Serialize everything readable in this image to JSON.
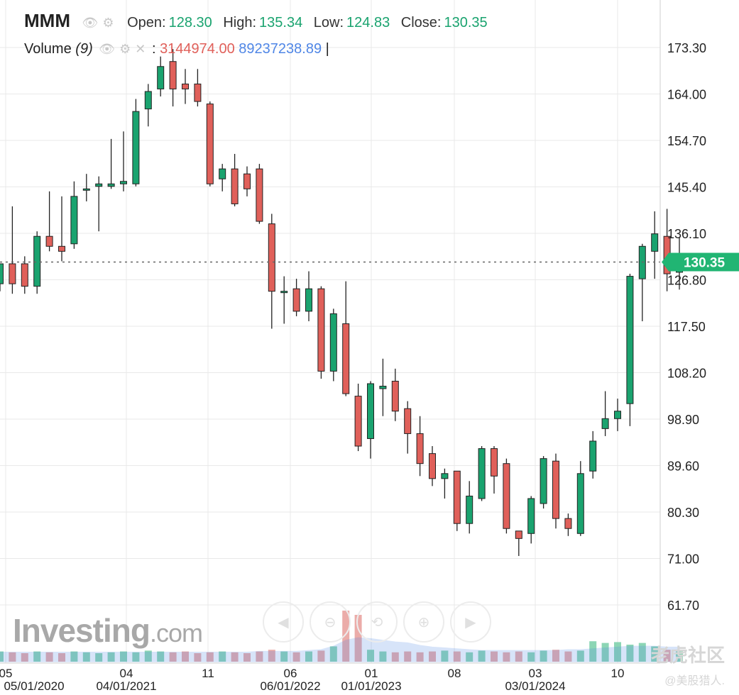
{
  "header": {
    "symbol": "MMM",
    "open_label": "Open:",
    "open": "128.30",
    "high_label": "High:",
    "high": "135.34",
    "low_label": "Low:",
    "low": "124.83",
    "close_label": "Close:",
    "close": "130.35"
  },
  "volume_legend": {
    "label": "Volume",
    "period": "(9)",
    "value1": "3144974.00",
    "value2": "89237238.89"
  },
  "watermark": {
    "brand": "Investing",
    "suffix": ".com"
  },
  "overlay": {
    "line1": "老虎社区",
    "line2": "@美股猎人."
  },
  "colors": {
    "up": "#1aa36f",
    "down": "#e0605a",
    "volume_ma": "#4f86e6",
    "price_tag": "#21b573"
  },
  "chart_data": {
    "type": "candlestick",
    "price_axis": {
      "ticks": [
        "173.30",
        "164.00",
        "154.70",
        "145.40",
        "136.10",
        "126.80",
        "117.50",
        "108.20",
        "98.90",
        "89.60",
        "80.30",
        "71.00",
        "61.70"
      ]
    },
    "time_axis_top": [
      "05",
      "04",
      "11",
      "06",
      "01",
      "08",
      "03",
      "10"
    ],
    "time_axis_bottom": [
      "05/01/2020",
      "04/01/2021",
      "06/01/2022",
      "01/01/2023",
      "03/01/2024"
    ],
    "last_price": "130.35",
    "candles": [
      {
        "o": 126.0,
        "h": 130.0,
        "l": 124.5,
        "c": 130.0
      },
      {
        "o": 130.0,
        "h": 141.5,
        "l": 124.0,
        "c": 126.0
      },
      {
        "o": 130.0,
        "h": 131.5,
        "l": 124.0,
        "c": 125.5
      },
      {
        "o": 125.5,
        "h": 136.5,
        "l": 124.0,
        "c": 135.5
      },
      {
        "o": 135.5,
        "h": 144.5,
        "l": 132.5,
        "c": 133.5
      },
      {
        "o": 133.5,
        "h": 143.5,
        "l": 130.5,
        "c": 132.5
      },
      {
        "o": 134.0,
        "h": 146.5,
        "l": 133.0,
        "c": 143.5
      },
      {
        "o": 145.0,
        "h": 148.0,
        "l": 142.5,
        "c": 145.0
      },
      {
        "o": 145.5,
        "h": 147.5,
        "l": 136.5,
        "c": 146.0
      },
      {
        "o": 145.5,
        "h": 155.0,
        "l": 145.0,
        "c": 146.0
      },
      {
        "o": 146.0,
        "h": 156.5,
        "l": 144.5,
        "c": 146.5
      },
      {
        "o": 146.0,
        "h": 163.0,
        "l": 145.5,
        "c": 160.5
      },
      {
        "o": 161.0,
        "h": 166.0,
        "l": 157.5,
        "c": 164.5
      },
      {
        "o": 165.0,
        "h": 171.5,
        "l": 163.5,
        "c": 169.5
      },
      {
        "o": 170.5,
        "h": 173.0,
        "l": 161.5,
        "c": 165.0
      },
      {
        "o": 166.0,
        "h": 169.0,
        "l": 162.0,
        "c": 165.0
      },
      {
        "o": 166.0,
        "h": 169.0,
        "l": 161.5,
        "c": 162.5
      },
      {
        "o": 162.0,
        "h": 162.5,
        "l": 145.5,
        "c": 146.0
      },
      {
        "o": 147.0,
        "h": 150.0,
        "l": 144.5,
        "c": 149.0
      },
      {
        "o": 149.0,
        "h": 152.0,
        "l": 141.5,
        "c": 142.0
      },
      {
        "o": 148.0,
        "h": 149.5,
        "l": 143.5,
        "c": 145.0
      },
      {
        "o": 149.0,
        "h": 150.0,
        "l": 138.0,
        "c": 138.5
      },
      {
        "o": 138.0,
        "h": 140.0,
        "l": 117.0,
        "c": 124.5
      },
      {
        "o": 124.5,
        "h": 127.5,
        "l": 118.0,
        "c": 124.5
      },
      {
        "o": 125.0,
        "h": 127.0,
        "l": 119.5,
        "c": 120.5
      },
      {
        "o": 120.5,
        "h": 128.5,
        "l": 118.5,
        "c": 125.0
      },
      {
        "o": 125.0,
        "h": 125.5,
        "l": 107.0,
        "c": 108.5
      },
      {
        "o": 108.5,
        "h": 121.0,
        "l": 106.5,
        "c": 120.0
      },
      {
        "o": 118.0,
        "h": 126.5,
        "l": 103.5,
        "c": 104.0
      },
      {
        "o": 103.5,
        "h": 106.0,
        "l": 92.5,
        "c": 93.5
      },
      {
        "o": 95.0,
        "h": 106.5,
        "l": 91.0,
        "c": 106.0
      },
      {
        "o": 105.0,
        "h": 111.0,
        "l": 99.5,
        "c": 105.5
      },
      {
        "o": 106.5,
        "h": 109.0,
        "l": 98.5,
        "c": 100.5
      },
      {
        "o": 101.0,
        "h": 102.5,
        "l": 92.0,
        "c": 96.0
      },
      {
        "o": 96.0,
        "h": 99.5,
        "l": 87.5,
        "c": 90.0
      },
      {
        "o": 92.0,
        "h": 93.5,
        "l": 85.5,
        "c": 87.0
      },
      {
        "o": 87.0,
        "h": 89.0,
        "l": 83.0,
        "c": 88.0
      },
      {
        "o": 88.5,
        "h": 88.5,
        "l": 76.5,
        "c": 78.0
      },
      {
        "o": 78.0,
        "h": 86.5,
        "l": 76.0,
        "c": 83.5
      },
      {
        "o": 83.0,
        "h": 93.5,
        "l": 82.5,
        "c": 93.0
      },
      {
        "o": 93.0,
        "h": 93.5,
        "l": 84.0,
        "c": 87.5
      },
      {
        "o": 90.0,
        "h": 91.0,
        "l": 76.0,
        "c": 77.0
      },
      {
        "o": 76.5,
        "h": 76.5,
        "l": 71.5,
        "c": 75.0
      },
      {
        "o": 76.0,
        "h": 83.5,
        "l": 74.0,
        "c": 83.0
      },
      {
        "o": 82.0,
        "h": 91.5,
        "l": 81.0,
        "c": 91.0
      },
      {
        "o": 90.5,
        "h": 92.0,
        "l": 77.0,
        "c": 79.0
      },
      {
        "o": 79.0,
        "h": 80.0,
        "l": 75.5,
        "c": 77.0
      },
      {
        "o": 76.0,
        "h": 90.5,
        "l": 75.5,
        "c": 88.0
      },
      {
        "o": 88.5,
        "h": 96.5,
        "l": 87.0,
        "c": 94.5
      },
      {
        "o": 97.0,
        "h": 104.5,
        "l": 95.5,
        "c": 99.0
      },
      {
        "o": 99.0,
        "h": 103.0,
        "l": 96.5,
        "c": 100.5
      },
      {
        "o": 102.0,
        "h": 128.0,
        "l": 97.5,
        "c": 127.5
      },
      {
        "o": 127.0,
        "h": 134.0,
        "l": 118.5,
        "c": 133.5
      },
      {
        "o": 132.5,
        "h": 140.5,
        "l": 127.0,
        "c": 136.0
      },
      {
        "o": 135.5,
        "h": 141.0,
        "l": 124.5,
        "c": 128.0
      },
      {
        "o": 128.3,
        "h": 135.34,
        "l": 124.83,
        "c": 130.35
      }
    ],
    "volume": [
      12,
      11,
      10,
      12,
      11,
      10,
      12,
      11,
      10,
      11,
      12,
      11,
      13,
      12,
      11,
      12,
      10,
      11,
      12,
      11,
      10,
      12,
      14,
      12,
      11,
      12,
      13,
      18,
      60,
      55,
      14,
      12,
      11,
      12,
      11,
      12,
      13,
      12,
      11,
      13,
      12,
      11,
      12,
      11,
      13,
      14,
      12,
      13,
      24,
      22,
      23,
      20,
      22,
      18,
      14,
      12
    ],
    "volume_ma": [
      11,
      11,
      11,
      11,
      11,
      11,
      11,
      11,
      11,
      11,
      11,
      11,
      11,
      11,
      11,
      11,
      11,
      11,
      11,
      11,
      11,
      12,
      12,
      12,
      12,
      13,
      14,
      18,
      25,
      28,
      27,
      25,
      23,
      22,
      19,
      17,
      16,
      15,
      14,
      13,
      13,
      13,
      13,
      13,
      13,
      13,
      14,
      14,
      15,
      16,
      17,
      18,
      18,
      18,
      17,
      17
    ]
  }
}
